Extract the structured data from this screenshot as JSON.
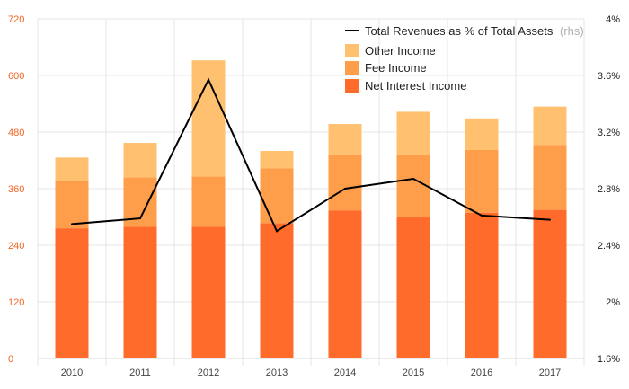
{
  "chart_data": {
    "type": "bar",
    "categories": [
      "2010",
      "2011",
      "2012",
      "2013",
      "2014",
      "2015",
      "2016",
      "2017"
    ],
    "series": [
      {
        "name": "Net Interest Income",
        "values": [
          276,
          279,
          279,
          287,
          314,
          299,
          309,
          315
        ],
        "color": "#ff6b2b",
        "axis": "left"
      },
      {
        "name": "Fee Income",
        "values": [
          101,
          105,
          107,
          116,
          119,
          134,
          133,
          138
        ],
        "color": "#ff9e4a",
        "axis": "left"
      },
      {
        "name": "Other Income",
        "values": [
          49,
          73,
          246,
          37,
          64,
          90,
          67,
          81
        ],
        "color": "#ffc06f",
        "axis": "left"
      },
      {
        "name": "Total Revenues as % of Total Assets",
        "values": [
          2.55,
          2.59,
          3.57,
          2.5,
          2.8,
          2.87,
          2.61,
          2.58
        ],
        "color": "#000000",
        "axis": "right",
        "type": "line"
      }
    ],
    "legend": {
      "line_label": "Total Revenues as % of Total Assets",
      "line_suffix": "(rhs)",
      "other_label": "Other Income",
      "fee_label": "Fee Income",
      "nii_label": "Net Interest Income"
    },
    "ylim_left": [
      0,
      720
    ],
    "yticks_left": [
      "0",
      "120",
      "240",
      "360",
      "480",
      "600",
      "720"
    ],
    "ylim_right": [
      1.6,
      4.0
    ],
    "yticks_right": [
      "1.6%",
      "2%",
      "2.4%",
      "2.8%",
      "3.2%",
      "3.6%",
      "4%"
    ],
    "grid": true,
    "legend_position": "top-right"
  }
}
